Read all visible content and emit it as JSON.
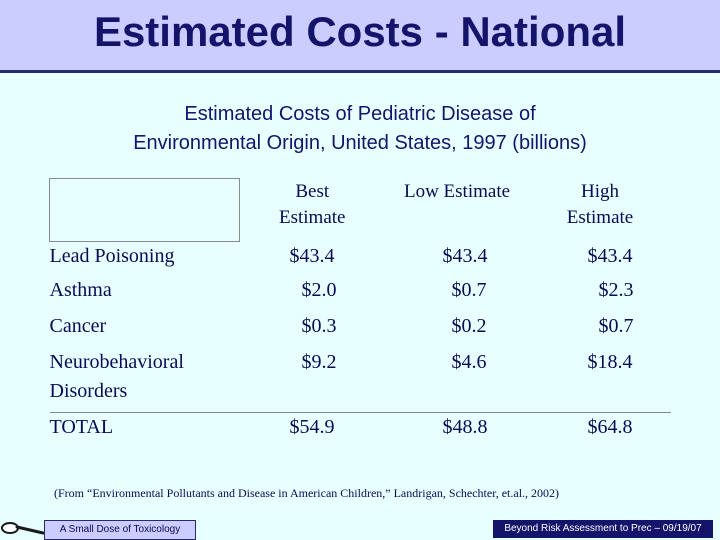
{
  "slide": {
    "title": "Estimated Costs - National",
    "subtitle_line1": "Estimated Costs of Pediatric Disease of",
    "subtitle_line2": "Environmental Origin, United States, 1997 (billions)"
  },
  "table": {
    "headers": {
      "best_1": "Best",
      "best_2": "Estimate",
      "low": "Low Estimate",
      "high_1": "High",
      "high_2": "Estimate"
    },
    "rows": [
      {
        "label": "Lead Poisoning",
        "best": "$43.4",
        "low": "$43.4",
        "high": "$43.4"
      },
      {
        "label": "Asthma",
        "best": "$2.0",
        "low": "$0.7",
        "high": "$2.3"
      },
      {
        "label": "Cancer",
        "best": "$0.3",
        "low": "$0.2",
        "high": "$0.7"
      },
      {
        "label_1": "Neurobehavioral",
        "label_2": "Disorders",
        "best": "$9.2",
        "low": "$4.6",
        "high": "$18.4"
      },
      {
        "label": "TOTAL",
        "best": "$54.9",
        "low": "$48.8",
        "high": "$64.8"
      }
    ]
  },
  "citation": "(From “Environmental Pollutants and Disease in American Children,” Landrigan, Schechter, et.al., 2002)",
  "footer": {
    "left": "A Small Dose of Toxicology",
    "right": "Beyond Risk Assessment to Prec – 09/19/07"
  },
  "colors": {
    "background": "#e8ffff",
    "header_band": "#cbccff",
    "title_text": "#14146b"
  }
}
